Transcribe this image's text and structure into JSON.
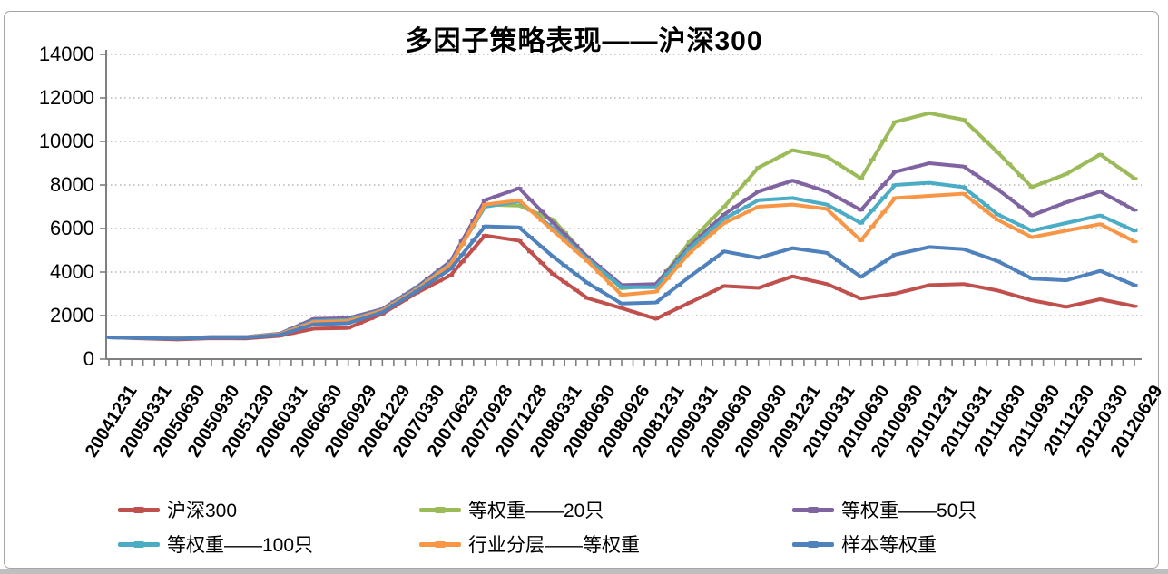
{
  "chart_data": {
    "type": "line",
    "title": "多因子策略表现——沪深300",
    "xlabel": "",
    "ylabel": "",
    "ylim": [
      0,
      14000
    ],
    "y_ticks": [
      0,
      2000,
      4000,
      6000,
      8000,
      10000,
      12000,
      14000
    ],
    "grid": "horizontal dotted",
    "legend_position": "bottom, 2 rows x 3 columns",
    "x_minor_tick_count": 91,
    "x_tick_labels": [
      "20041231",
      "20050331",
      "20050630",
      "20050930",
      "20051230",
      "20060331",
      "20060630",
      "20060929",
      "20061229",
      "20070330",
      "20070629",
      "20070928",
      "20071228",
      "20080331",
      "20080630",
      "20080926",
      "20081231",
      "20090331",
      "20090630",
      "20090930",
      "20091231",
      "20100331",
      "20100630",
      "20100930",
      "20101231",
      "20110331",
      "20110630",
      "20110930",
      "20111230",
      "20120330",
      "20120629"
    ],
    "series": [
      {
        "name": "沪深300",
        "color": "#C0504D",
        "values": [
          1000,
          950,
          900,
          960,
          950,
          1070,
          1400,
          1430,
          2080,
          3040,
          3860,
          5680,
          5440,
          3900,
          2800,
          2340,
          1850,
          2600,
          3360,
          3270,
          3800,
          3450,
          2780,
          3010,
          3400,
          3450,
          3150,
          2700,
          2400,
          2750,
          2430
        ]
      },
      {
        "name": "等权重——20只",
        "color": "#9BBB59",
        "values": [
          1000,
          980,
          960,
          1010,
          1010,
          1160,
          1780,
          1820,
          2260,
          3250,
          4450,
          7100,
          7050,
          6400,
          4650,
          3250,
          3400,
          5400,
          7000,
          8800,
          9600,
          9300,
          8300,
          10900,
          11300,
          11000,
          9500,
          7900,
          8500,
          9400,
          8300
        ]
      },
      {
        "name": "等权重——50只",
        "color": "#8064A2",
        "values": [
          1000,
          985,
          965,
          1015,
          1015,
          1170,
          1850,
          1880,
          2300,
          3300,
          4500,
          7300,
          7850,
          6250,
          4700,
          3400,
          3450,
          5200,
          6650,
          7700,
          8200,
          7700,
          6850,
          8600,
          9000,
          8850,
          7800,
          6600,
          7200,
          7700,
          6850
        ]
      },
      {
        "name": "等权重——100只",
        "color": "#4BACC6",
        "values": [
          1000,
          980,
          955,
          1005,
          1005,
          1150,
          1750,
          1800,
          2250,
          3220,
          4400,
          7000,
          7250,
          6000,
          4600,
          3300,
          3300,
          5100,
          6450,
          7300,
          7400,
          7100,
          6250,
          8000,
          8100,
          7900,
          6650,
          5900,
          6250,
          6600,
          5900
        ]
      },
      {
        "name": "行业分层——等权重",
        "color": "#F79646",
        "values": [
          1000,
          975,
          950,
          1000,
          1000,
          1140,
          1700,
          1750,
          2220,
          3180,
          4350,
          7100,
          7300,
          5900,
          4500,
          2950,
          3100,
          4900,
          6250,
          7000,
          7100,
          6900,
          5450,
          7400,
          7500,
          7600,
          6400,
          5600,
          5900,
          6200,
          5400
        ]
      },
      {
        "name": "样本等权重",
        "color": "#4F81BD",
        "values": [
          1000,
          970,
          940,
          990,
          990,
          1110,
          1600,
          1650,
          2150,
          3120,
          4150,
          6100,
          6050,
          4700,
          3500,
          2550,
          2600,
          3800,
          4950,
          4650,
          5100,
          4880,
          3780,
          4800,
          5150,
          5050,
          4500,
          3700,
          3620,
          4050,
          3400
        ]
      }
    ]
  }
}
